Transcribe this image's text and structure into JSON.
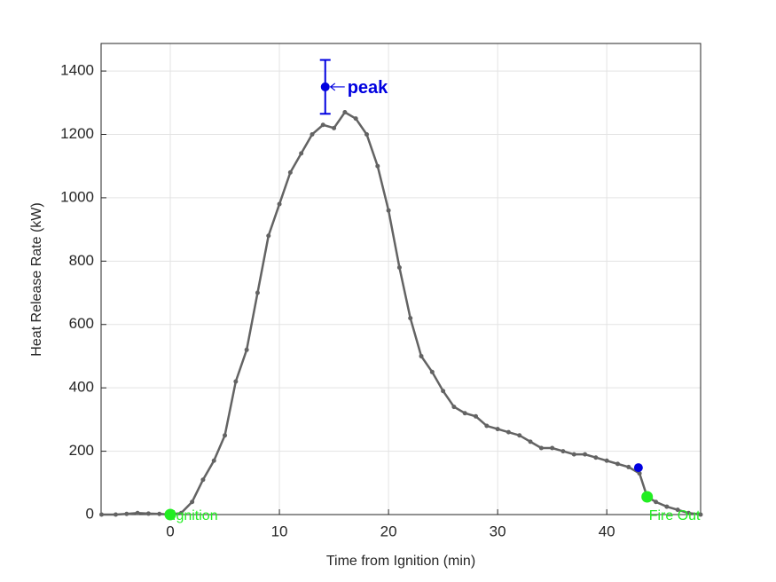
{
  "chart_data": {
    "type": "line",
    "xlabel": "Time from Ignition (min)",
    "ylabel": "Heat Release Rate (kW)",
    "color": "#636363",
    "x": [
      -6.3,
      -5,
      -4,
      -3,
      -2,
      -1,
      0,
      1,
      2,
      3,
      4,
      5,
      6,
      7,
      8,
      9,
      10,
      11,
      12,
      13,
      14,
      15,
      16,
      17,
      18,
      19,
      20,
      21,
      22,
      23,
      24,
      25,
      26,
      27,
      28,
      29,
      30,
      31,
      32,
      33,
      34,
      35,
      36,
      37,
      38,
      39,
      40,
      41,
      42,
      43,
      43.7,
      44.5,
      45.5,
      46.5,
      47.5,
      48.6
    ],
    "values": [
      0,
      0,
      2,
      5,
      3,
      2,
      0,
      5,
      40,
      110,
      170,
      250,
      420,
      520,
      700,
      880,
      980,
      1080,
      1140,
      1200,
      1230,
      1220,
      1270,
      1250,
      1200,
      1100,
      960,
      780,
      620,
      500,
      450,
      390,
      340,
      320,
      310,
      280,
      270,
      260,
      250,
      230,
      210,
      210,
      200,
      190,
      190,
      180,
      170,
      160,
      150,
      130,
      56,
      40,
      25,
      15,
      5,
      0
    ],
    "xlim": [
      -6.34,
      48.6
    ],
    "ylim": [
      0,
      1487
    ],
    "xticks": [
      0,
      10,
      20,
      30,
      40
    ],
    "yticks": [
      0,
      200,
      400,
      600,
      800,
      1000,
      1200,
      1400
    ],
    "grid": true,
    "peak": {
      "x": 14.2,
      "y": 1350,
      "error": 85,
      "label": "peak",
      "color": "#0000e0"
    },
    "end_point": {
      "x": 42.9,
      "y": 148,
      "color": "#0000e0"
    },
    "events": [
      {
        "x": 0,
        "y": 0,
        "label": "Ignition",
        "color": "#22ee22"
      },
      {
        "x": 43.7,
        "y": 56,
        "label": "Fire Out",
        "color": "#22ee22"
      }
    ]
  }
}
